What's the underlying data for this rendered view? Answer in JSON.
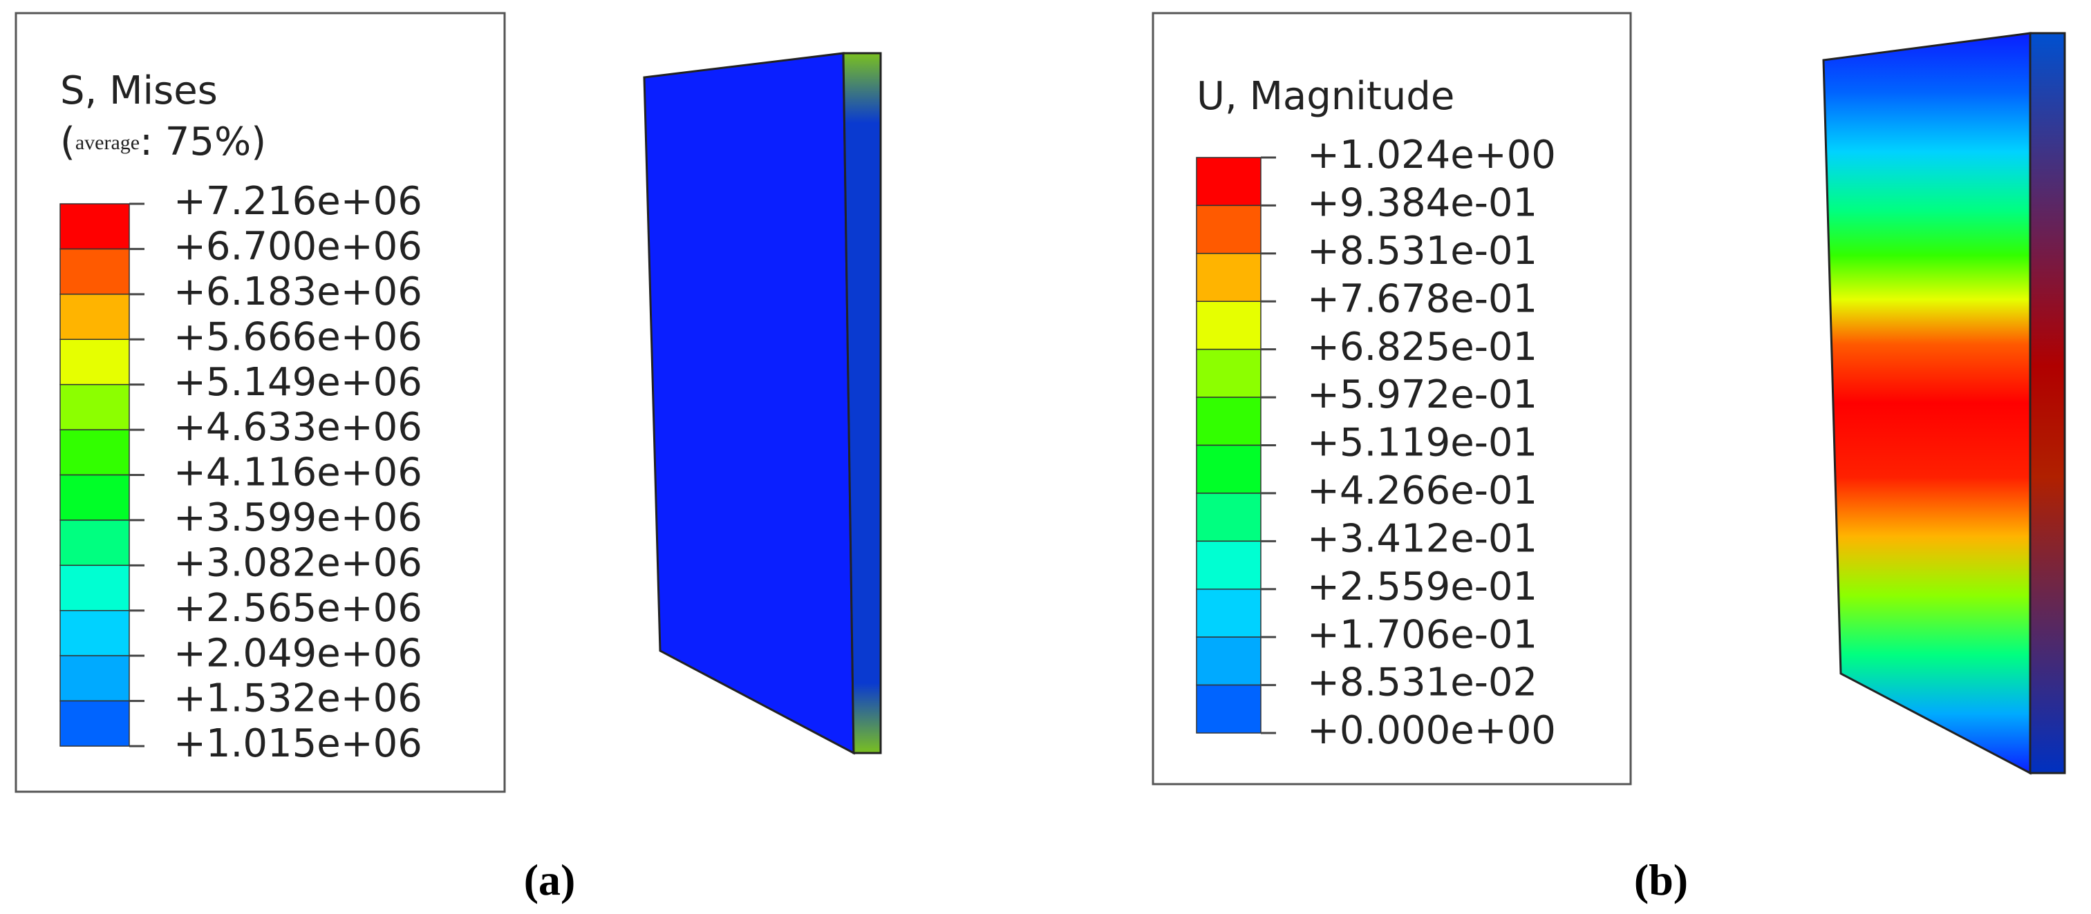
{
  "panels": [
    {
      "title": "S, Mises",
      "subtitle": {
        "open": "(",
        "small": "average",
        "rest": ": 75%)"
      },
      "labels": [
        "+7.216e+06",
        "+6.700e+06",
        "+6.183e+06",
        "+5.666e+06",
        "+5.149e+06",
        "+4.633e+06",
        "+4.116e+06",
        "+3.599e+06",
        "+3.082e+06",
        "+2.565e+06",
        "+2.049e+06",
        "+1.532e+06",
        "+1.015e+06"
      ],
      "colors": [
        "#ff0000",
        "#ff5a00",
        "#ffb400",
        "#e6ff00",
        "#8cff00",
        "#32ff00",
        "#00ff28",
        "#00ff80",
        "#00ffd2",
        "#00d2ff",
        "#00aaff",
        "#0064ff",
        "#0a1fff"
      ],
      "caption": "(a)"
    },
    {
      "title": "U, Magnitude",
      "labels": [
        "+1.024e+00",
        "+9.384e-01",
        "+8.531e-01",
        "+7.678e-01",
        "+6.825e-01",
        "+5.972e-01",
        "+5.119e-01",
        "+4.266e-01",
        "+3.412e-01",
        "+2.559e-01",
        "+1.706e-01",
        "+8.531e-02",
        "+0.000e+00"
      ],
      "colors": [
        "#ff0000",
        "#ff5a00",
        "#ffb400",
        "#e6ff00",
        "#8cff00",
        "#32ff00",
        "#00ff28",
        "#00ff80",
        "#00ffd2",
        "#00d2ff",
        "#00aaff",
        "#0064ff",
        "#0a1fff"
      ],
      "caption": "(b)"
    }
  ]
}
